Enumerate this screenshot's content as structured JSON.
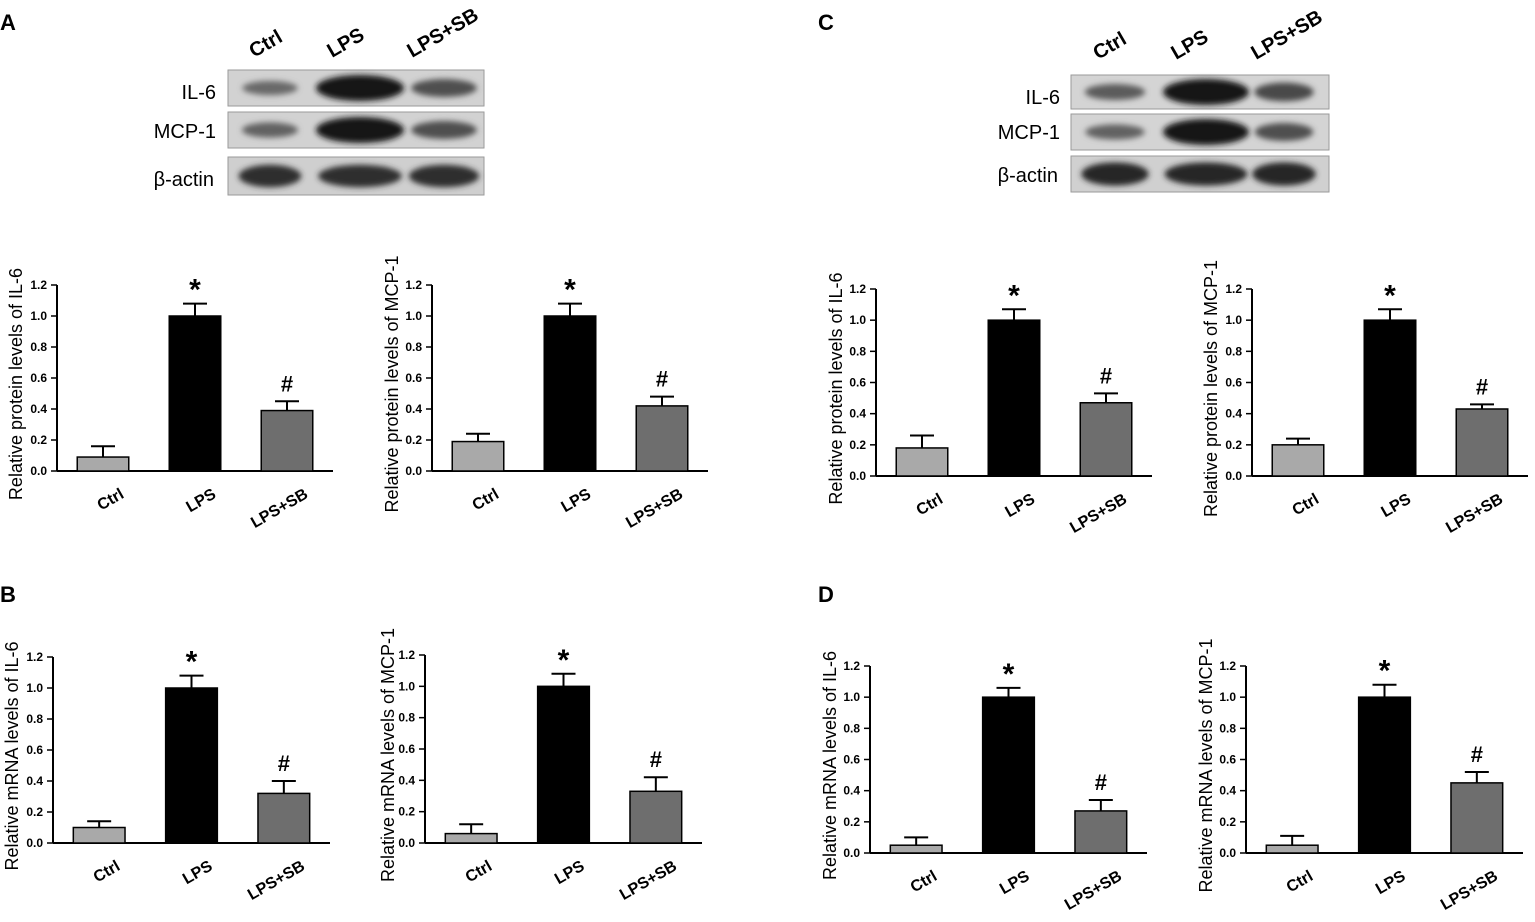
{
  "figure": {
    "panels": [
      {
        "letter": "A",
        "blot": {
          "lanes": [
            "Ctrl",
            "LPS",
            "LPS+SB"
          ],
          "rows": [
            {
              "label": "IL-6",
              "intensity": [
                0.35,
                1.0,
                0.55
              ]
            },
            {
              "label": "MCP-1",
              "intensity": [
                0.4,
                1.0,
                0.55
              ]
            },
            {
              "label": "β-actin",
              "intensity": [
                0.8,
                0.8,
                0.8
              ]
            }
          ]
        }
      },
      {
        "letter": "B"
      },
      {
        "letter": "C",
        "blot": {
          "lanes": [
            "Ctrl",
            "LPS",
            "LPS+SB"
          ],
          "rows": [
            {
              "label": "IL-6",
              "intensity": [
                0.45,
                1.0,
                0.6
              ]
            },
            {
              "label": "MCP-1",
              "intensity": [
                0.4,
                1.0,
                0.55
              ]
            },
            {
              "label": "β-actin",
              "intensity": [
                0.85,
                0.85,
                0.85
              ]
            }
          ]
        }
      },
      {
        "letter": "D"
      }
    ]
  },
  "chart_data": [
    {
      "id": "A-IL6",
      "type": "bar",
      "ylabel": "Relative protein levels of IL-6",
      "categories": [
        "Ctrl",
        "LPS",
        "LPS+SB"
      ],
      "values": [
        0.09,
        1.0,
        0.39
      ],
      "errors": [
        0.07,
        0.08,
        0.06
      ],
      "annotations": [
        "",
        "*",
        "#"
      ],
      "ylim": [
        0,
        1.2
      ],
      "yticks": [
        "0.0",
        "0.2",
        "0.4",
        "0.6",
        "0.8",
        "1.0",
        "1.2"
      ],
      "colors": [
        "#a9a9a9",
        "#000000",
        "#6e6e6e"
      ]
    },
    {
      "id": "A-MCP1",
      "type": "bar",
      "ylabel": "Relative protein levels of MCP-1",
      "categories": [
        "Ctrl",
        "LPS",
        "LPS+SB"
      ],
      "values": [
        0.19,
        1.0,
        0.42
      ],
      "errors": [
        0.05,
        0.08,
        0.06
      ],
      "annotations": [
        "",
        "*",
        "#"
      ],
      "ylim": [
        0,
        1.2
      ],
      "yticks": [
        "0.0",
        "0.2",
        "0.4",
        "0.6",
        "0.8",
        "1.0",
        "1.2"
      ],
      "colors": [
        "#a9a9a9",
        "#000000",
        "#6e6e6e"
      ]
    },
    {
      "id": "B-IL6",
      "type": "bar",
      "ylabel": "Relative mRNA levels of IL-6",
      "categories": [
        "Ctrl",
        "LPS",
        "LPS+SB"
      ],
      "values": [
        0.1,
        1.0,
        0.32
      ],
      "errors": [
        0.04,
        0.08,
        0.08
      ],
      "annotations": [
        "",
        "*",
        "#"
      ],
      "ylim": [
        0,
        1.2
      ],
      "yticks": [
        "0.0",
        "0.2",
        "0.4",
        "0.6",
        "0.8",
        "1.0",
        "1.2"
      ],
      "colors": [
        "#a9a9a9",
        "#000000",
        "#6e6e6e"
      ]
    },
    {
      "id": "B-MCP1",
      "type": "bar",
      "ylabel": "Relative mRNA levels of MCP-1",
      "categories": [
        "Ctrl",
        "LPS",
        "LPS+SB"
      ],
      "values": [
        0.06,
        1.0,
        0.33
      ],
      "errors": [
        0.06,
        0.08,
        0.09
      ],
      "annotations": [
        "",
        "*",
        "#"
      ],
      "ylim": [
        0,
        1.2
      ],
      "yticks": [
        "0.0",
        "0.2",
        "0.4",
        "0.6",
        "0.8",
        "1.0",
        "1.2"
      ],
      "colors": [
        "#a9a9a9",
        "#000000",
        "#6e6e6e"
      ]
    },
    {
      "id": "C-IL6",
      "type": "bar",
      "ylabel": "Relative protein levels of IL-6",
      "categories": [
        "Ctrl",
        "LPS",
        "LPS+SB"
      ],
      "values": [
        0.18,
        1.0,
        0.47
      ],
      "errors": [
        0.08,
        0.07,
        0.06
      ],
      "annotations": [
        "",
        "*",
        "#"
      ],
      "ylim": [
        0,
        1.2
      ],
      "yticks": [
        "0.0",
        "0.2",
        "0.4",
        "0.6",
        "0.8",
        "1.0",
        "1.2"
      ],
      "colors": [
        "#a9a9a9",
        "#000000",
        "#6e6e6e"
      ]
    },
    {
      "id": "C-MCP1",
      "type": "bar",
      "ylabel": "Relative protein levels of MCP-1",
      "categories": [
        "Ctrl",
        "LPS",
        "LPS+SB"
      ],
      "values": [
        0.2,
        1.0,
        0.43
      ],
      "errors": [
        0.04,
        0.07,
        0.03
      ],
      "annotations": [
        "",
        "*",
        "#"
      ],
      "ylim": [
        0,
        1.2
      ],
      "yticks": [
        "0.0",
        "0.2",
        "0.4",
        "0.6",
        "0.8",
        "1.0",
        "1.2"
      ],
      "colors": [
        "#a9a9a9",
        "#000000",
        "#6e6e6e"
      ]
    },
    {
      "id": "D-IL6",
      "type": "bar",
      "ylabel": "Relative mRNA levels of IL-6",
      "categories": [
        "Ctrl",
        "LPS",
        "LPS+SB"
      ],
      "values": [
        0.05,
        1.0,
        0.27
      ],
      "errors": [
        0.05,
        0.06,
        0.07
      ],
      "annotations": [
        "",
        "*",
        "#"
      ],
      "ylim": [
        0,
        1.2
      ],
      "yticks": [
        "0.0",
        "0.2",
        "0.4",
        "0.6",
        "0.8",
        "1.0",
        "1.2"
      ],
      "colors": [
        "#a9a9a9",
        "#000000",
        "#6e6e6e"
      ]
    },
    {
      "id": "D-MCP1",
      "type": "bar",
      "ylabel": "Relative mRNA levels of MCP-1",
      "categories": [
        "Ctrl",
        "LPS",
        "LPS+SB"
      ],
      "values": [
        0.05,
        1.0,
        0.45
      ],
      "errors": [
        0.06,
        0.08,
        0.07
      ],
      "annotations": [
        "",
        "*",
        "#"
      ],
      "ylim": [
        0,
        1.2
      ],
      "yticks": [
        "0.0",
        "0.2",
        "0.4",
        "0.6",
        "0.8",
        "1.0",
        "1.2"
      ],
      "colors": [
        "#a9a9a9",
        "#000000",
        "#6e6e6e"
      ]
    }
  ]
}
